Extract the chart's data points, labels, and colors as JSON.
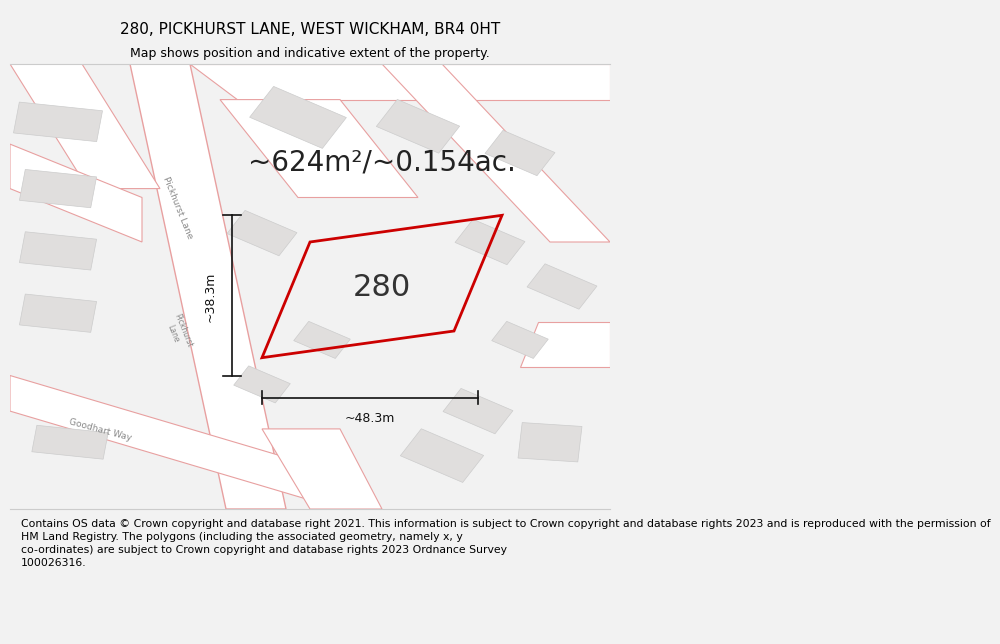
{
  "title": "280, PICKHURST LANE, WEST WICKHAM, BR4 0HT",
  "subtitle": "Map shows position and indicative extent of the property.",
  "area_text": "~624m²/~0.154ac.",
  "property_label": "280",
  "dim_width": "~48.3m",
  "dim_height": "~38.3m",
  "footer": "Contains OS data © Crown copyright and database right 2021. This information is subject to Crown copyright and database rights 2023 and is reproduced with the permission of\nHM Land Registry. The polygons (including the associated geometry, namely x, y\nco-ordinates) are subject to Crown copyright and database rights 2023 Ordnance Survey\n100026316.",
  "bg_color": "#f2f2f2",
  "map_bg": "#f7f5f3",
  "road_fill": "#ffffff",
  "road_edge": "#e8a0a0",
  "building_fill": "#e0dedd",
  "building_edge": "#cccccc",
  "property_color": "#cc0000",
  "dim_color": "#111111",
  "road_label_color": "#888888",
  "title_fontsize": 11,
  "subtitle_fontsize": 9,
  "area_fontsize": 20,
  "label_fontsize": 22,
  "footer_fontsize": 7.8,
  "dim_fontsize": 9
}
